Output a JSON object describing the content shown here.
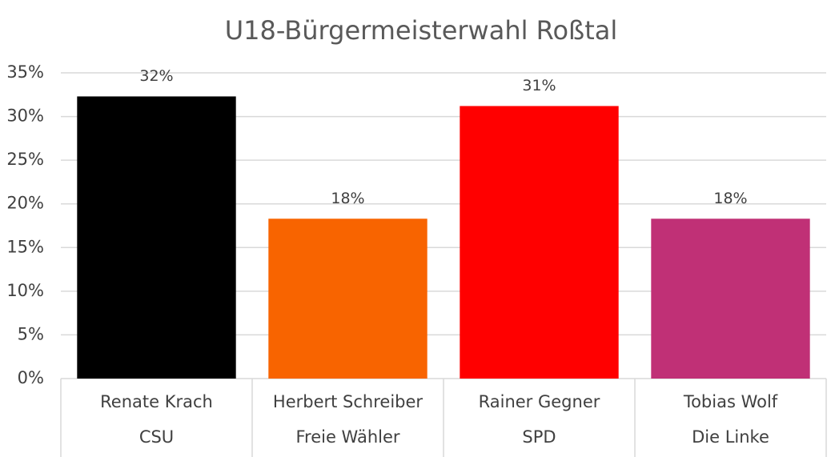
{
  "chart_data": {
    "type": "bar",
    "title": "U18-Bürgermeisterwahl Roßtal",
    "categories": [
      "Renate Krach",
      "Herbert Schreiber",
      "Rainer Gegner",
      "Tobias Wolf"
    ],
    "subcategories": [
      "CSU",
      "Freie Wähler",
      "SPD",
      "Die Linke"
    ],
    "values": [
      32.3,
      18.3,
      31.2,
      18.3
    ],
    "value_labels": [
      "32%",
      "18%",
      "31%",
      "18%"
    ],
    "colors": [
      "#000000",
      "#f86400",
      "#ff0000",
      "#c03076"
    ],
    "ylim": [
      0,
      35
    ],
    "yticks": [
      {
        "value": 0,
        "label": "0%"
      },
      {
        "value": 5,
        "label": "5%"
      },
      {
        "value": 10,
        "label": "10%"
      },
      {
        "value": 15,
        "label": "15%"
      },
      {
        "value": 20,
        "label": "20%"
      },
      {
        "value": 25,
        "label": "25%"
      },
      {
        "value": 30,
        "label": "30%"
      },
      {
        "value": 35,
        "label": "35%"
      }
    ],
    "grid": true
  }
}
